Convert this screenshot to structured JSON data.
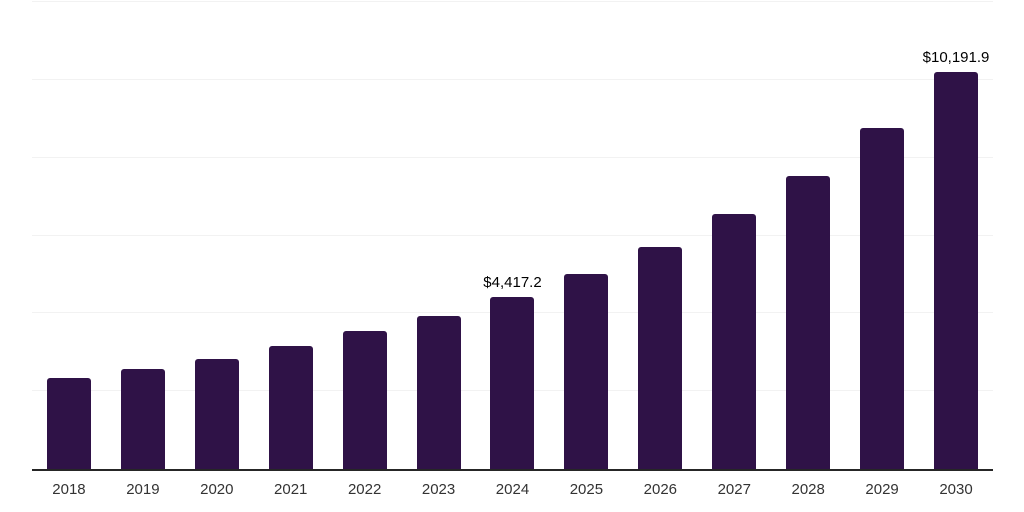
{
  "chart_data": {
    "type": "bar",
    "title": "",
    "xlabel": "",
    "ylabel": "",
    "categories": [
      "2018",
      "2019",
      "2020",
      "2021",
      "2022",
      "2023",
      "2024",
      "2025",
      "2026",
      "2027",
      "2028",
      "2029",
      "2030"
    ],
    "values": [
      2340,
      2570,
      2820,
      3170,
      3540,
      3940,
      4417.2,
      5010,
      5710,
      6560,
      7540,
      8770,
      10191.9
    ],
    "bar_labels": [
      "",
      "",
      "",
      "",
      "",
      "",
      "$4,417.2",
      "",
      "",
      "",
      "",
      "",
      "$10,191.9"
    ],
    "ylim": [
      0,
      12000
    ],
    "gridline_step": 2000,
    "grid": true,
    "legend": false,
    "y_axis_ticks_visible": false,
    "colors": {
      "bar_color": "#2f1247",
      "axis_color": "#262626",
      "gridline_color": "#f2f2f2",
      "tick_label_color": "#333333",
      "data_label_color": "#000000",
      "background": "#ffffff"
    }
  }
}
